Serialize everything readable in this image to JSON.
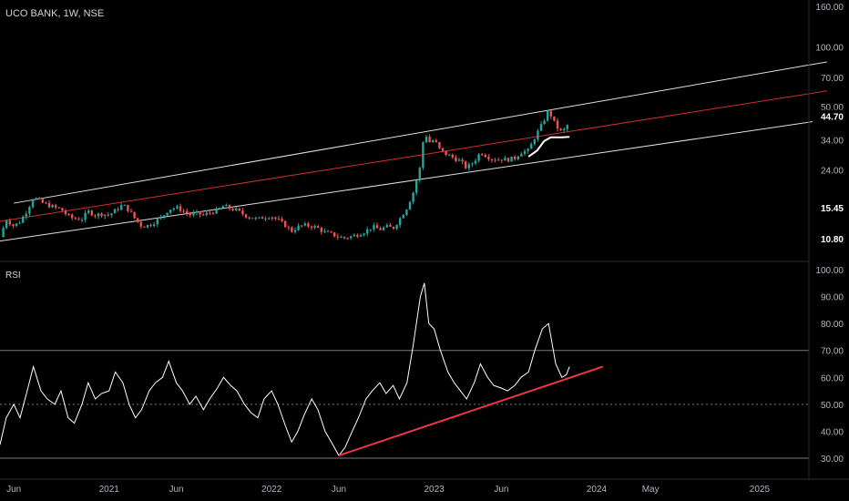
{
  "header": {
    "symbol_title": "UCO BANK, 1W, NSE"
  },
  "rsi_panel": {
    "label": "RSI"
  },
  "colors": {
    "up": "#26a69a",
    "down": "#ef5350",
    "channel": "#e0e0e0",
    "median": "#d32f2f",
    "rsi_line": "#ffffff",
    "trend": "#f23645"
  },
  "chart_data": [
    {
      "type": "candlestick",
      "title": "UCO BANK, 1W, NSE",
      "y_scale": "log",
      "y_tick_labels": [
        "160.00",
        "100.00",
        "70.00",
        "50.00",
        "34.00",
        "24.00",
        "15.45",
        "10.80"
      ],
      "y_ticks": [
        160,
        100,
        70,
        50,
        34,
        24,
        15.45,
        10.8
      ],
      "last_price_label": "44.70",
      "x_tick_labels": [
        "Jun",
        "2021",
        "Jun",
        "2022",
        "Jun",
        "2023",
        "Jun",
        "2024",
        "May",
        "2025"
      ],
      "x_ticks": [
        "2020-06",
        "2021-01",
        "2021-06",
        "2022-01",
        "2022-06",
        "2023-01",
        "2023-06",
        "2024-01",
        "2024-05",
        "2025-01"
      ],
      "price_path": [
        [
          "2020-05-01",
          11.0
        ],
        [
          "2020-05-15",
          13.5
        ],
        [
          "2020-06-01",
          12.5
        ],
        [
          "2020-06-15",
          13.2
        ],
        [
          "2020-07-01",
          15.0
        ],
        [
          "2020-07-15",
          17.5
        ],
        [
          "2020-08-01",
          16.5
        ],
        [
          "2020-08-15",
          16.0
        ],
        [
          "2020-09-01",
          15.5
        ],
        [
          "2020-09-15",
          15.2
        ],
        [
          "2020-10-01",
          14.0
        ],
        [
          "2020-10-15",
          13.6
        ],
        [
          "2020-11-01",
          13.6
        ],
        [
          "2020-11-15",
          14.8
        ],
        [
          "2020-12-01",
          14.2
        ],
        [
          "2020-12-15",
          14.4
        ],
        [
          "2021-01-01",
          14.2
        ],
        [
          "2021-01-15",
          15.0
        ],
        [
          "2021-02-01",
          16.0
        ],
        [
          "2021-02-15",
          15.0
        ],
        [
          "2021-03-01",
          13.5
        ],
        [
          "2021-03-15",
          12.5
        ],
        [
          "2021-04-01",
          12.6
        ],
        [
          "2021-04-15",
          13.2
        ],
        [
          "2021-05-01",
          14.0
        ],
        [
          "2021-05-15",
          15.2
        ],
        [
          "2021-06-01",
          15.5
        ],
        [
          "2021-06-15",
          15.0
        ],
        [
          "2021-07-01",
          14.2
        ],
        [
          "2021-07-15",
          14.5
        ],
        [
          "2021-08-01",
          14.2
        ],
        [
          "2021-08-15",
          14.6
        ],
        [
          "2021-09-01",
          15.0
        ],
        [
          "2021-09-15",
          15.8
        ],
        [
          "2021-10-01",
          15.3
        ],
        [
          "2021-10-15",
          15.0
        ],
        [
          "2021-11-01",
          14.2
        ],
        [
          "2021-11-15",
          13.8
        ],
        [
          "2021-12-01",
          13.5
        ],
        [
          "2021-12-15",
          13.9
        ],
        [
          "2022-01-01",
          14.0
        ],
        [
          "2022-01-15",
          13.4
        ],
        [
          "2022-02-01",
          12.6
        ],
        [
          "2022-02-15",
          11.8
        ],
        [
          "2022-03-01",
          12.4
        ],
        [
          "2022-03-15",
          12.6
        ],
        [
          "2022-04-01",
          12.5
        ],
        [
          "2022-04-15",
          12.2
        ],
        [
          "2022-05-01",
          11.6
        ],
        [
          "2022-05-15",
          11.4
        ],
        [
          "2022-06-01",
          11.0
        ],
        [
          "2022-06-15",
          10.9
        ],
        [
          "2022-07-01",
          11.1
        ],
        [
          "2022-07-15",
          11.4
        ],
        [
          "2022-08-01",
          11.8
        ],
        [
          "2022-08-15",
          12.4
        ],
        [
          "2022-09-01",
          12.0
        ],
        [
          "2022-09-15",
          12.4
        ],
        [
          "2022-10-01",
          12.2
        ],
        [
          "2022-10-15",
          13.5
        ],
        [
          "2022-11-01",
          15.5
        ],
        [
          "2022-11-15",
          18.5
        ],
        [
          "2022-12-01",
          25.0
        ],
        [
          "2022-12-10",
          38.0
        ],
        [
          "2022-12-20",
          33.0
        ],
        [
          "2023-01-01",
          34.0
        ],
        [
          "2023-01-15",
          30.0
        ],
        [
          "2023-02-01",
          28.5
        ],
        [
          "2023-02-15",
          27.5
        ],
        [
          "2023-03-01",
          26.5
        ],
        [
          "2023-03-15",
          24.5
        ],
        [
          "2023-04-01",
          26.5
        ],
        [
          "2023-04-15",
          29.5
        ],
        [
          "2023-05-01",
          28.0
        ],
        [
          "2023-05-15",
          27.0
        ],
        [
          "2023-06-01",
          27.2
        ],
        [
          "2023-06-15",
          27.0
        ],
        [
          "2023-07-01",
          27.5
        ],
        [
          "2023-07-15",
          29.5
        ],
        [
          "2023-08-01",
          30.0
        ],
        [
          "2023-08-15",
          35.0
        ],
        [
          "2023-09-01",
          41.0
        ],
        [
          "2023-09-15",
          48.0
        ],
        [
          "2023-10-01",
          40.0
        ],
        [
          "2023-10-15",
          37.0
        ],
        [
          "2023-10-25",
          39.5
        ],
        [
          "2023-11-01",
          42.0
        ]
      ],
      "channel": {
        "upper": [
          [
            "2020-06-01",
            16.3
          ],
          [
            "2025-06-01",
            84.0
          ]
        ],
        "median": [
          [
            "2020-05-01",
            13.2
          ],
          [
            "2025-06-01",
            60.0
          ]
        ],
        "lower": [
          [
            "2020-05-01",
            10.5
          ],
          [
            "2025-06-01",
            43.0
          ]
        ]
      },
      "moving_average": [
        [
          "2023-08-01",
          28.0
        ],
        [
          "2023-08-20",
          30.0
        ],
        [
          "2023-09-05",
          33.5
        ],
        [
          "2023-09-20",
          35.0
        ],
        [
          "2023-10-15",
          35.0
        ],
        [
          "2023-11-01",
          35.2
        ]
      ]
    },
    {
      "type": "line",
      "title": "RSI",
      "y_tick_labels": [
        "100.00",
        "90.00",
        "80.00",
        "70.00",
        "60.00",
        "50.00",
        "40.00",
        "30.00"
      ],
      "ylim": [
        25,
        100
      ],
      "bands": [
        70,
        50,
        30
      ],
      "rsi": [
        [
          "2020-05-01",
          35
        ],
        [
          "2020-05-15",
          45
        ],
        [
          "2020-06-01",
          50
        ],
        [
          "2020-06-15",
          45
        ],
        [
          "2020-07-01",
          55
        ],
        [
          "2020-07-15",
          64
        ],
        [
          "2020-08-01",
          55
        ],
        [
          "2020-08-15",
          52
        ],
        [
          "2020-09-01",
          50
        ],
        [
          "2020-09-15",
          55
        ],
        [
          "2020-10-01",
          45
        ],
        [
          "2020-10-15",
          43
        ],
        [
          "2020-11-01",
          50
        ],
        [
          "2020-11-15",
          58
        ],
        [
          "2020-12-01",
          52
        ],
        [
          "2020-12-15",
          54
        ],
        [
          "2021-01-01",
          55
        ],
        [
          "2021-01-15",
          62
        ],
        [
          "2021-02-01",
          58
        ],
        [
          "2021-02-15",
          50
        ],
        [
          "2021-03-01",
          45
        ],
        [
          "2021-03-15",
          48
        ],
        [
          "2021-04-01",
          55
        ],
        [
          "2021-04-15",
          58
        ],
        [
          "2021-05-01",
          60
        ],
        [
          "2021-05-15",
          66
        ],
        [
          "2021-06-01",
          58
        ],
        [
          "2021-06-15",
          55
        ],
        [
          "2021-07-01",
          50
        ],
        [
          "2021-07-15",
          53
        ],
        [
          "2021-08-01",
          48
        ],
        [
          "2021-08-15",
          52
        ],
        [
          "2021-09-01",
          56
        ],
        [
          "2021-09-15",
          60
        ],
        [
          "2021-10-01",
          57
        ],
        [
          "2021-10-15",
          55
        ],
        [
          "2021-11-01",
          50
        ],
        [
          "2021-11-15",
          47
        ],
        [
          "2021-12-01",
          45
        ],
        [
          "2021-12-15",
          52
        ],
        [
          "2022-01-01",
          55
        ],
        [
          "2022-01-15",
          50
        ],
        [
          "2022-02-01",
          42
        ],
        [
          "2022-02-15",
          36
        ],
        [
          "2022-03-01",
          40
        ],
        [
          "2022-03-15",
          46
        ],
        [
          "2022-04-01",
          52
        ],
        [
          "2022-04-15",
          48
        ],
        [
          "2022-05-01",
          40
        ],
        [
          "2022-05-15",
          36
        ],
        [
          "2022-06-01",
          31
        ],
        [
          "2022-06-15",
          34
        ],
        [
          "2022-07-01",
          40
        ],
        [
          "2022-07-15",
          45
        ],
        [
          "2022-08-01",
          52
        ],
        [
          "2022-08-15",
          55
        ],
        [
          "2022-09-01",
          58
        ],
        [
          "2022-09-15",
          54
        ],
        [
          "2022-10-01",
          57
        ],
        [
          "2022-10-15",
          52
        ],
        [
          "2022-11-01",
          58
        ],
        [
          "2022-11-15",
          72
        ],
        [
          "2022-12-01",
          90
        ],
        [
          "2022-12-10",
          95
        ],
        [
          "2022-12-20",
          80
        ],
        [
          "2023-01-01",
          78
        ],
        [
          "2023-01-15",
          70
        ],
        [
          "2023-02-01",
          62
        ],
        [
          "2023-02-15",
          58
        ],
        [
          "2023-03-01",
          55
        ],
        [
          "2023-03-15",
          52
        ],
        [
          "2023-04-01",
          58
        ],
        [
          "2023-04-15",
          65
        ],
        [
          "2023-05-01",
          60
        ],
        [
          "2023-05-15",
          57
        ],
        [
          "2023-06-01",
          56
        ],
        [
          "2023-06-15",
          55
        ],
        [
          "2023-07-01",
          57
        ],
        [
          "2023-07-15",
          60
        ],
        [
          "2023-08-01",
          62
        ],
        [
          "2023-08-15",
          70
        ],
        [
          "2023-09-01",
          78
        ],
        [
          "2023-09-15",
          80
        ],
        [
          "2023-10-01",
          65
        ],
        [
          "2023-10-15",
          60
        ],
        [
          "2023-10-25",
          61
        ],
        [
          "2023-11-01",
          64
        ]
      ],
      "trendline": [
        [
          "2022-06-01",
          31
        ],
        [
          "2024-01-15",
          64
        ]
      ]
    }
  ]
}
